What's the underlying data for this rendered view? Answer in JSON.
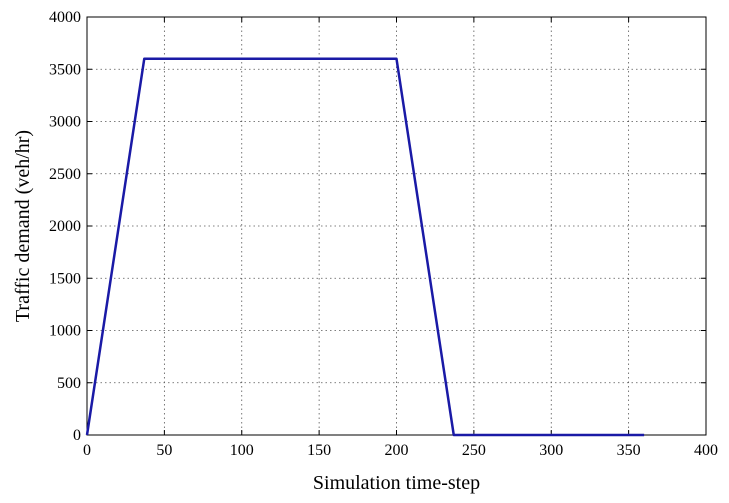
{
  "chart_data": {
    "type": "line",
    "title": "",
    "xlabel": "Simulation time-step",
    "ylabel": "Traffic demand (veh/hr)",
    "xlim": [
      0,
      400
    ],
    "ylim": [
      0,
      4000
    ],
    "xticks": [
      0,
      50,
      100,
      150,
      200,
      250,
      300,
      350,
      400
    ],
    "yticks": [
      0,
      500,
      1000,
      1500,
      2000,
      2500,
      3000,
      3500,
      4000
    ],
    "x_tick_labels": [
      "0",
      "50",
      "100",
      "150",
      "200",
      "250",
      "300",
      "350",
      "400"
    ],
    "y_tick_labels": [
      "0",
      "500",
      "1000",
      "1500",
      "2000",
      "2500",
      "3000",
      "3500",
      "4000"
    ],
    "grid": true,
    "series": [
      {
        "color": "#1a1aa6",
        "x": [
          0,
          37,
          200,
          237,
          360
        ],
        "y": [
          0,
          3600,
          3600,
          0,
          0
        ]
      }
    ]
  }
}
